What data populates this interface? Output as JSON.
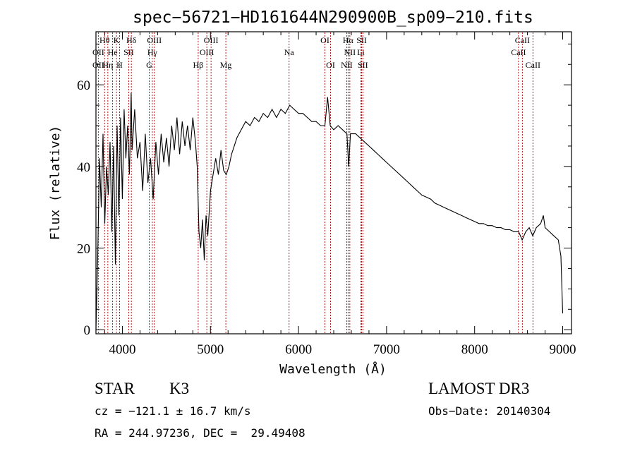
{
  "chart_data": {
    "type": "line",
    "title": "spec−56721−HD161644N290900B_sp09−210.fits",
    "xlabel": "Wavelength (Å)",
    "ylabel": "Flux (relative)",
    "xlim": [
      3700,
      9100
    ],
    "ylim": [
      -1,
      73
    ],
    "xticks": [
      4000,
      5000,
      6000,
      7000,
      8000,
      9000
    ],
    "yticks": [
      0,
      20,
      40,
      60
    ],
    "x_minor_step": 200,
    "y_minor_step": 5,
    "grid": false,
    "line_color": "#000000",
    "marker_color": "#aa0000",
    "series": [
      {
        "name": "flux",
        "points": [
          [
            3700,
            0
          ],
          [
            3720,
            18
          ],
          [
            3740,
            42
          ],
          [
            3760,
            30
          ],
          [
            3780,
            48
          ],
          [
            3800,
            26
          ],
          [
            3820,
            40
          ],
          [
            3840,
            33
          ],
          [
            3860,
            46
          ],
          [
            3880,
            24
          ],
          [
            3900,
            45
          ],
          [
            3920,
            16
          ],
          [
            3940,
            50
          ],
          [
            3960,
            28
          ],
          [
            3980,
            52
          ],
          [
            4000,
            32
          ],
          [
            4020,
            54
          ],
          [
            4040,
            42
          ],
          [
            4060,
            50
          ],
          [
            4080,
            38
          ],
          [
            4100,
            58
          ],
          [
            4110,
            44
          ],
          [
            4140,
            54
          ],
          [
            4170,
            42
          ],
          [
            4200,
            46
          ],
          [
            4230,
            34
          ],
          [
            4260,
            48
          ],
          [
            4290,
            36
          ],
          [
            4320,
            42
          ],
          [
            4350,
            32
          ],
          [
            4380,
            46
          ],
          [
            4410,
            38
          ],
          [
            4440,
            48
          ],
          [
            4470,
            41
          ],
          [
            4500,
            47
          ],
          [
            4530,
            40
          ],
          [
            4560,
            50
          ],
          [
            4590,
            44
          ],
          [
            4620,
            52
          ],
          [
            4650,
            43
          ],
          [
            4680,
            51
          ],
          [
            4710,
            45
          ],
          [
            4740,
            50
          ],
          [
            4770,
            44
          ],
          [
            4800,
            52
          ],
          [
            4830,
            46
          ],
          [
            4850,
            40
          ],
          [
            4870,
            24
          ],
          [
            4890,
            20
          ],
          [
            4910,
            27
          ],
          [
            4930,
            17
          ],
          [
            4950,
            28
          ],
          [
            4970,
            23
          ],
          [
            5000,
            34
          ],
          [
            5030,
            38
          ],
          [
            5060,
            42
          ],
          [
            5090,
            38
          ],
          [
            5120,
            44
          ],
          [
            5150,
            39
          ],
          [
            5180,
            38
          ],
          [
            5210,
            40
          ],
          [
            5240,
            43
          ],
          [
            5270,
            45
          ],
          [
            5300,
            47
          ],
          [
            5350,
            49
          ],
          [
            5400,
            51
          ],
          [
            5450,
            50
          ],
          [
            5500,
            52
          ],
          [
            5550,
            51
          ],
          [
            5600,
            53
          ],
          [
            5650,
            52
          ],
          [
            5700,
            54
          ],
          [
            5750,
            52
          ],
          [
            5800,
            54
          ],
          [
            5850,
            53
          ],
          [
            5900,
            55
          ],
          [
            5950,
            54
          ],
          [
            6000,
            53
          ],
          [
            6050,
            53
          ],
          [
            6100,
            52
          ],
          [
            6150,
            51
          ],
          [
            6200,
            51
          ],
          [
            6250,
            50
          ],
          [
            6300,
            50
          ],
          [
            6330,
            57
          ],
          [
            6360,
            50
          ],
          [
            6400,
            49
          ],
          [
            6450,
            50
          ],
          [
            6500,
            49
          ],
          [
            6550,
            48
          ],
          [
            6570,
            40
          ],
          [
            6590,
            48
          ],
          [
            6650,
            48
          ],
          [
            6700,
            47
          ],
          [
            6750,
            46
          ],
          [
            6800,
            45
          ],
          [
            6850,
            44
          ],
          [
            6900,
            43
          ],
          [
            6950,
            42
          ],
          [
            7000,
            41
          ],
          [
            7050,
            40
          ],
          [
            7100,
            39
          ],
          [
            7150,
            38
          ],
          [
            7200,
            37
          ],
          [
            7250,
            36
          ],
          [
            7300,
            35
          ],
          [
            7350,
            34
          ],
          [
            7400,
            33
          ],
          [
            7450,
            32.5
          ],
          [
            7500,
            32
          ],
          [
            7550,
            31
          ],
          [
            7600,
            30.5
          ],
          [
            7650,
            30
          ],
          [
            7700,
            29.5
          ],
          [
            7750,
            29
          ],
          [
            7800,
            28.5
          ],
          [
            7850,
            28
          ],
          [
            7900,
            27.5
          ],
          [
            7950,
            27
          ],
          [
            8000,
            26.5
          ],
          [
            8050,
            26
          ],
          [
            8100,
            26
          ],
          [
            8150,
            25.5
          ],
          [
            8200,
            25.5
          ],
          [
            8250,
            25
          ],
          [
            8300,
            25
          ],
          [
            8350,
            24.5
          ],
          [
            8400,
            24.5
          ],
          [
            8450,
            24
          ],
          [
            8500,
            24
          ],
          [
            8540,
            22
          ],
          [
            8580,
            24
          ],
          [
            8620,
            25
          ],
          [
            8660,
            23
          ],
          [
            8700,
            25
          ],
          [
            8750,
            26
          ],
          [
            8780,
            28
          ],
          [
            8800,
            25
          ],
          [
            8850,
            24
          ],
          [
            8900,
            23
          ],
          [
            8950,
            22
          ],
          [
            8980,
            18
          ],
          [
            9000,
            4
          ]
        ]
      }
    ],
    "lines": [
      {
        "label": "Hθ",
        "x": 3798,
        "row": 1
      },
      {
        "label": "K",
        "x": 3933,
        "row": 1
      },
      {
        "label": "Hδ",
        "x": 4102,
        "row": 1
      },
      {
        "label": "OIII",
        "x": 4363,
        "row": 1
      },
      {
        "label": "OIII",
        "x": 5007,
        "row": 1
      },
      {
        "label": "OI",
        "x": 6300,
        "row": 1
      },
      {
        "label": "Hα",
        "x": 6563,
        "row": 1
      },
      {
        "label": "SII",
        "x": 6717,
        "row": 1
      },
      {
        "label": "CaII",
        "x": 8542,
        "row": 1
      },
      {
        "label": "OII",
        "x": 3727,
        "row": 2
      },
      {
        "label": "He",
        "x": 3889,
        "row": 2
      },
      {
        "label": "SII",
        "x": 4072,
        "row": 2
      },
      {
        "label": "Hγ",
        "x": 4340,
        "row": 2
      },
      {
        "label": "OIII",
        "x": 4959,
        "row": 2
      },
      {
        "label": "Na",
        "x": 5893,
        "row": 2
      },
      {
        "label": "NII",
        "x": 6583,
        "row": 2
      },
      {
        "label": "Li",
        "x": 6708,
        "row": 2
      },
      {
        "label": "CaII",
        "x": 8498,
        "row": 2
      },
      {
        "label": "OII",
        "x": 3727,
        "row": 3
      },
      {
        "label": "Hη",
        "x": 3835,
        "row": 3
      },
      {
        "label": "H",
        "x": 3968,
        "row": 3
      },
      {
        "label": "G",
        "x": 4305,
        "row": 3
      },
      {
        "label": "Hβ",
        "x": 4861,
        "row": 3
      },
      {
        "label": "Mg",
        "x": 5175,
        "row": 3
      },
      {
        "label": "OI",
        "x": 6364,
        "row": 3
      },
      {
        "label": "NII",
        "x": 6548,
        "row": 3
      },
      {
        "label": "SII",
        "x": 6731,
        "row": 3
      },
      {
        "label": "CaII",
        "x": 8662,
        "row": 3
      }
    ]
  },
  "info": {
    "object_class": "STAR",
    "subclass": "K3",
    "survey": "LAMOST DR3",
    "cz": "cz = −121.1 ± 16.7 km/s",
    "obs_date": "Obs−Date: 20140304",
    "coords": "RA = 244.97236, DEC =  29.49408"
  }
}
